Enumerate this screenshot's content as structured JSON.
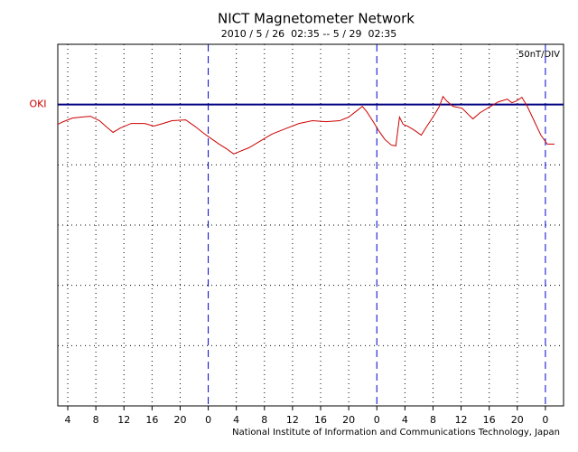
{
  "chart_data": {
    "type": "line",
    "title": "NICT Magnetometer Network",
    "subtitle": "2010 / 5 / 26  02:35 -- 5 / 29  02:35",
    "scale_label": "50nT/DIV",
    "footer": "National Institute of Information and Communications Technology, Japan",
    "x": [
      2.58,
      3.36,
      4.65,
      5.94,
      7.23,
      8.52,
      9.55,
      10.45,
      11.49,
      13.03,
      14.97,
      16.26,
      17.55,
      18.84,
      20.78,
      22.07,
      23.36,
      24.26,
      25.55,
      26.58,
      27.62,
      28.52,
      29.81,
      31.75,
      33.04,
      34.97,
      36.91,
      38.84,
      40.78,
      42.71,
      44.0,
      45.29,
      45.94,
      46.58,
      47.49,
      48.26,
      49.16,
      50.07,
      50.71,
      51.23,
      51.74,
      52.39,
      53.42,
      54.32,
      54.97,
      56.0,
      56.91,
      57.42,
      57.94,
      58.84,
      60.13,
      61.16,
      61.68,
      62.71,
      64.0,
      65.29,
      66.58,
      67.23,
      67.87,
      68.65,
      69.42,
      70.45,
      71.36,
      72.26,
      73.29
    ],
    "series": [
      {
        "name": "OKI",
        "color": "#cc0000",
        "values": [
          -16.4,
          -14.2,
          -11.2,
          -10.4,
          -9.7,
          -13.4,
          -18.7,
          -23.1,
          -19.4,
          -15.7,
          -15.7,
          -17.9,
          -15.7,
          -13.4,
          -12.7,
          -17.9,
          -23.9,
          -27.6,
          -32.8,
          -36.6,
          -41.0,
          -38.8,
          -35.8,
          -29.1,
          -24.6,
          -20.1,
          -15.7,
          -13.4,
          -14.2,
          -13.4,
          -10.4,
          -4.5,
          -1.5,
          -6.0,
          -14.2,
          -21.6,
          -29.1,
          -33.6,
          -34.3,
          -10.4,
          -16.4,
          -17.9,
          -21.6,
          -25.4,
          -19.4,
          -10.4,
          -1.5,
          6.7,
          3.0,
          -1.5,
          -3.0,
          -9.0,
          -11.9,
          -6.7,
          -2.2,
          2.2,
          4.5,
          1.5,
          3.0,
          6.0,
          -1.5,
          -14.2,
          -25.4,
          -32.8,
          -32.8
        ]
      }
    ],
    "baseline": 0,
    "baseline_color": "#000080",
    "day_line_color": "#0000cc",
    "xlim": [
      2.5833,
      74.5833
    ],
    "xticks": [
      4,
      8,
      12,
      16,
      20,
      {
        "value": 24,
        "label": "0"
      },
      {
        "value": 28,
        "label": "4"
      },
      {
        "value": 32,
        "label": "8"
      },
      {
        "value": 36,
        "label": "12"
      },
      {
        "value": 40,
        "label": "16"
      },
      {
        "value": 44,
        "label": "20"
      },
      {
        "value": 48,
        "label": "0"
      },
      {
        "value": 52,
        "label": "4"
      },
      {
        "value": 56,
        "label": "8"
      },
      {
        "value": 60,
        "label": "12"
      },
      {
        "value": 64,
        "label": "16"
      },
      {
        "value": 68,
        "label": "20"
      },
      {
        "value": 72,
        "label": "0"
      }
    ],
    "ylim": [
      -250,
      50
    ],
    "yticks": [
      -200,
      -150,
      -100,
      -50
    ],
    "grid": true
  }
}
